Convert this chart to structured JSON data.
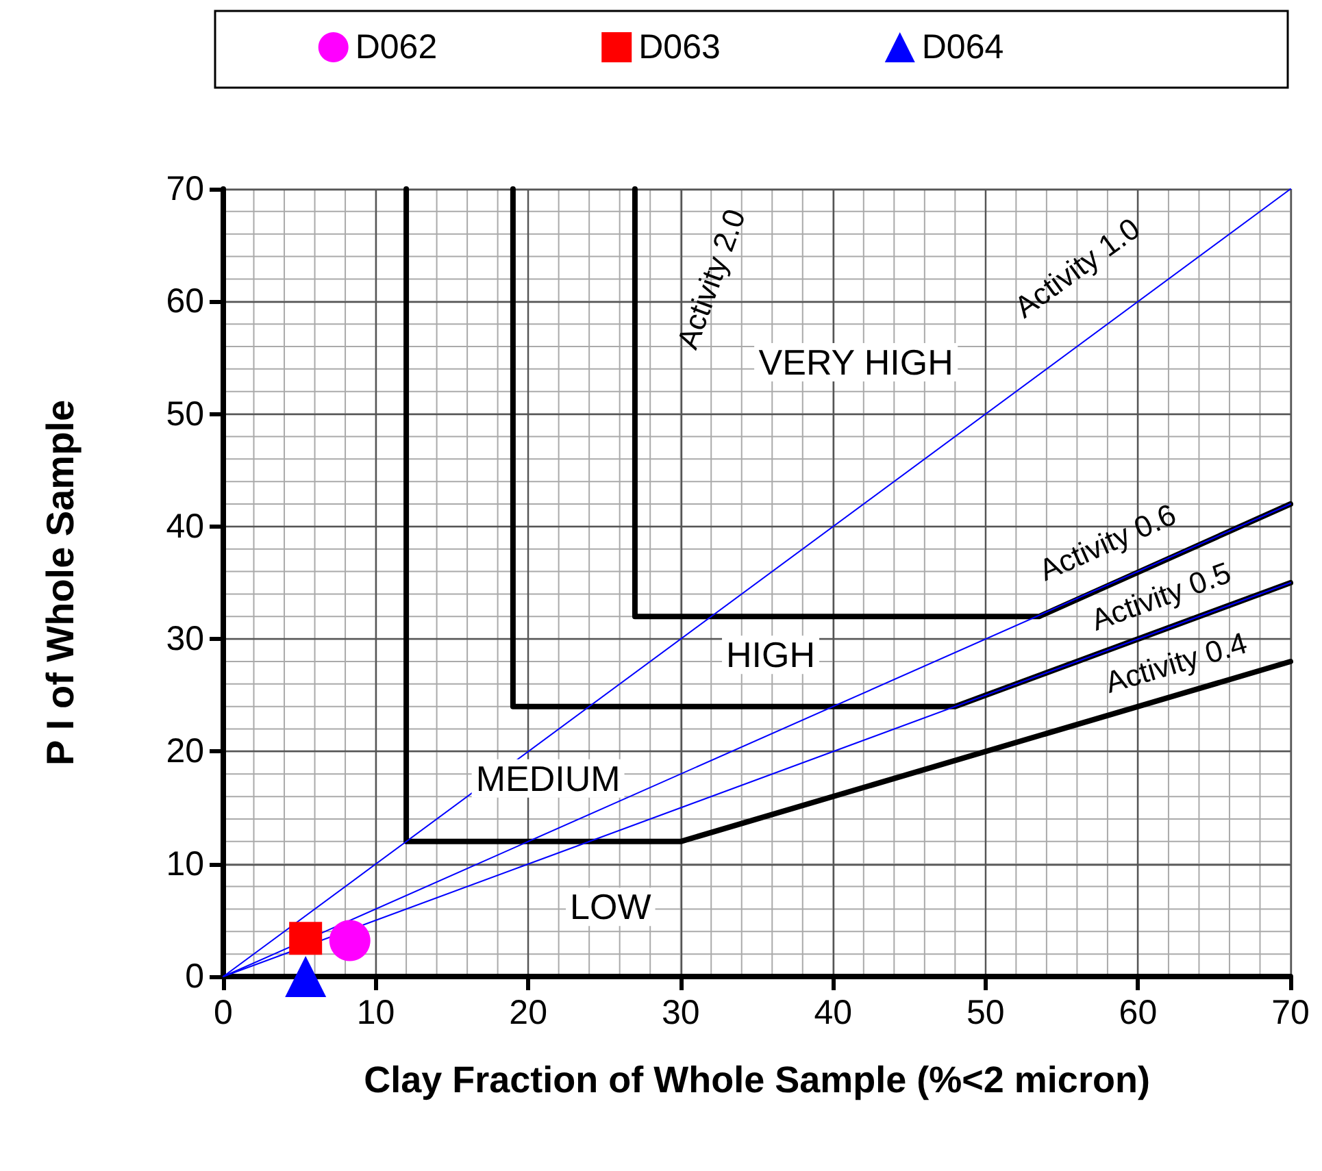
{
  "chart_data": {
    "type": "scatter",
    "xlabel": "Clay Fraction of Whole Sample (%<2 micron)",
    "ylabel": "P I of Whole Sample",
    "xlim": [
      0,
      70
    ],
    "xticks": [
      0,
      10,
      20,
      30,
      40,
      50,
      60,
      70
    ],
    "ylim": [
      0,
      70
    ],
    "yticks": [
      0,
      10,
      20,
      30,
      40,
      50,
      60,
      70
    ],
    "grid": true,
    "legend": "top",
    "series": [
      {
        "type": "line",
        "color": "#000000",
        "marker": "none",
        "line_style": "solid",
        "x": [
          12,
          12,
          30,
          70
        ],
        "values": [
          70,
          12,
          12,
          28
        ]
      },
      {
        "type": "line",
        "color": "#000000",
        "marker": "none",
        "line_style": "solid",
        "x": [
          19,
          19,
          48,
          70
        ],
        "values": [
          70,
          24,
          24,
          35
        ]
      },
      {
        "type": "line",
        "color": "#000000",
        "marker": "none",
        "line_style": "solid",
        "x": [
          27,
          27,
          53.5,
          70
        ],
        "values": [
          70,
          32,
          32,
          42
        ]
      },
      {
        "type": "line",
        "color": "#0000ff",
        "marker": "none",
        "line_style": "solid",
        "x": [
          0,
          70
        ],
        "values": [
          0,
          70
        ]
      },
      {
        "type": "line",
        "color": "#0000ff",
        "marker": "none",
        "line_style": "solid",
        "x": [
          0,
          70
        ],
        "values": [
          0,
          42
        ]
      },
      {
        "type": "line",
        "color": "#0000ff",
        "marker": "none",
        "line_style": "solid",
        "x": [
          0,
          70
        ],
        "values": [
          0,
          35
        ]
      },
      {
        "name": "D062",
        "color": "#ff00ff",
        "marker": "circle",
        "x": [
          8.3
        ],
        "values": [
          3.2
        ]
      },
      {
        "name": "D063",
        "color": "#ff0000",
        "marker": "square",
        "x": [
          5.4
        ],
        "values": [
          3.4
        ]
      },
      {
        "name": "D064",
        "color": "#0000ff",
        "marker": "triangle",
        "x": [
          5.4
        ],
        "values": [
          0
        ]
      }
    ],
    "annotations": [
      "Activity 2.0",
      "Activity 1.0",
      "VERY HIGH",
      "HIGH",
      "MEDIUM",
      "LOW",
      "Activity 0.6",
      "Activity 0.5",
      "Activity 0.4"
    ]
  }
}
